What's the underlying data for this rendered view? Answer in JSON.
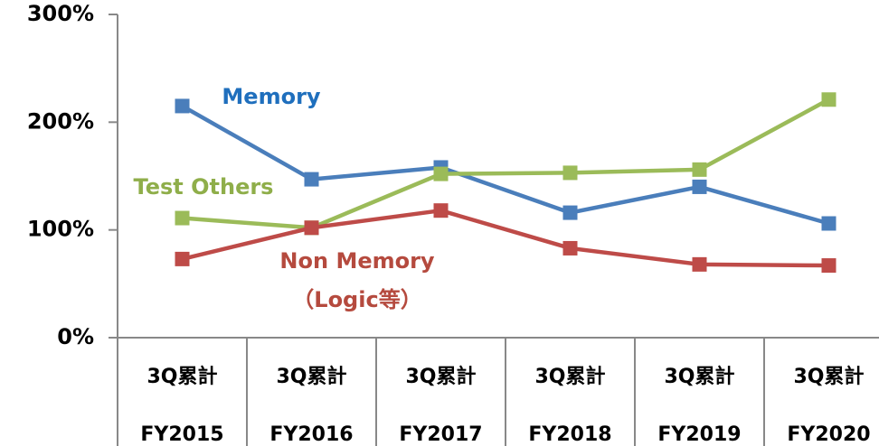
{
  "chart_data": {
    "type": "line",
    "categories": [
      [
        "3Q累計",
        "FY2015"
      ],
      [
        "3Q累計",
        "FY2016"
      ],
      [
        "3Q累計",
        "FY2017"
      ],
      [
        "3Q累計",
        "FY2018"
      ],
      [
        "3Q累計",
        "FY2019"
      ],
      [
        "3Q累計",
        "FY2020"
      ]
    ],
    "series": [
      {
        "name": "Memory",
        "color": "#4a7ebb",
        "label_color": "#1f6fbd",
        "values": [
          215,
          147,
          158,
          116,
          140,
          106
        ]
      },
      {
        "name": "Test Others",
        "color": "#9bbb59",
        "label_color": "#8fae4a",
        "values": [
          111,
          102,
          152,
          153,
          156,
          221
        ]
      },
      {
        "name": [
          "Non Memory",
          "（Logic等）"
        ],
        "color": "#be4b48",
        "label_color": "#b54a3e",
        "values": [
          73,
          102,
          118,
          83,
          68,
          67
        ]
      }
    ],
    "ylim": [
      0,
      300
    ],
    "yticks": [
      {
        "value": 0,
        "label": "0%"
      },
      {
        "value": 100,
        "label": "100%"
      },
      {
        "value": 200,
        "label": "200%"
      },
      {
        "value": 300,
        "label": "300%"
      }
    ],
    "grid": false
  }
}
